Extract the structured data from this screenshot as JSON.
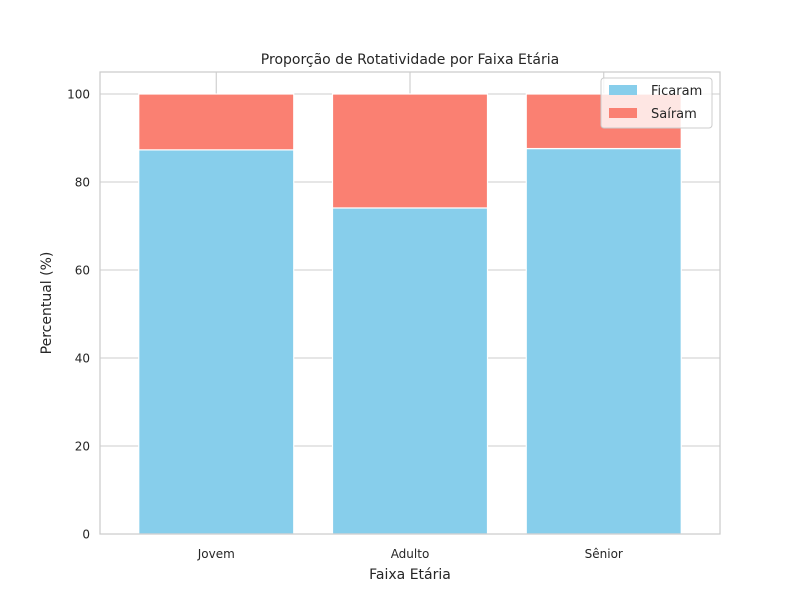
{
  "chart_data": {
    "type": "bar",
    "stacked": true,
    "title": "Proporção de Rotatividade por Faixa Etária",
    "xlabel": "Faixa Etária",
    "ylabel": "Percentual (%)",
    "categories": [
      "Jovem",
      "Adulto",
      "Sênior"
    ],
    "series": [
      {
        "name": "Ficaram",
        "values": [
          87.3,
          74.1,
          87.6
        ],
        "color": "#87ceeb"
      },
      {
        "name": "Saíram",
        "values": [
          12.7,
          25.9,
          12.4
        ],
        "color": "#fa8072"
      }
    ],
    "ylim": [
      0,
      105
    ],
    "yticks": [
      "0",
      "20",
      "40",
      "60",
      "80",
      "100"
    ],
    "grid": true,
    "legend_position": "top-right"
  }
}
